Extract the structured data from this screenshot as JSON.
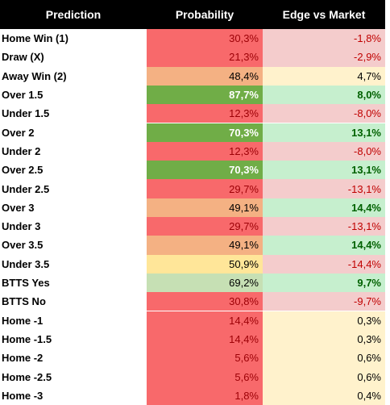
{
  "table": {
    "header": [
      "Prediction",
      "Probability",
      "Edge vs Market"
    ],
    "rows": [
      [
        "Home Win (1)",
        "30,3%",
        "-1,8%"
      ],
      [
        "Draw (X)",
        "21,3%",
        "-2,9%"
      ],
      [
        "Away Win (2)",
        "48,4%",
        "4,7%"
      ],
      [
        "Over 1.5",
        "87,7%",
        "8,0%"
      ],
      [
        "Under 1.5",
        "12,3%",
        "-8,0%"
      ],
      [
        "Over 2",
        "70,3%",
        "13,1%"
      ],
      [
        "Under 2",
        "12,3%",
        "-8,0%"
      ],
      [
        "Over 2.5",
        "70,3%",
        "13,1%"
      ],
      [
        "Under 2.5",
        "29,7%",
        "-13,1%"
      ],
      [
        "Over 3",
        "49,1%",
        "14,4%"
      ],
      [
        "Under 3",
        "29,7%",
        "-13,1%"
      ],
      [
        "Over 3.5",
        "49,1%",
        "14,4%"
      ],
      [
        "Under 3.5",
        "50,9%",
        "-14,4%"
      ],
      [
        "BTTS Yes",
        "69,2%",
        "9,7%"
      ],
      [
        "BTTS No",
        "30,8%",
        "-9,7%"
      ],
      [
        "Home -1",
        "14,4%",
        "0,3%"
      ],
      [
        "Home -1.5",
        "14,4%",
        "0,3%"
      ],
      [
        "Home -2",
        "5,6%",
        "0,6%"
      ],
      [
        "Home -2.5",
        "5,6%",
        "0,6%"
      ],
      [
        "Home -3",
        "1,8%",
        "0,4%"
      ]
    ]
  }
}
